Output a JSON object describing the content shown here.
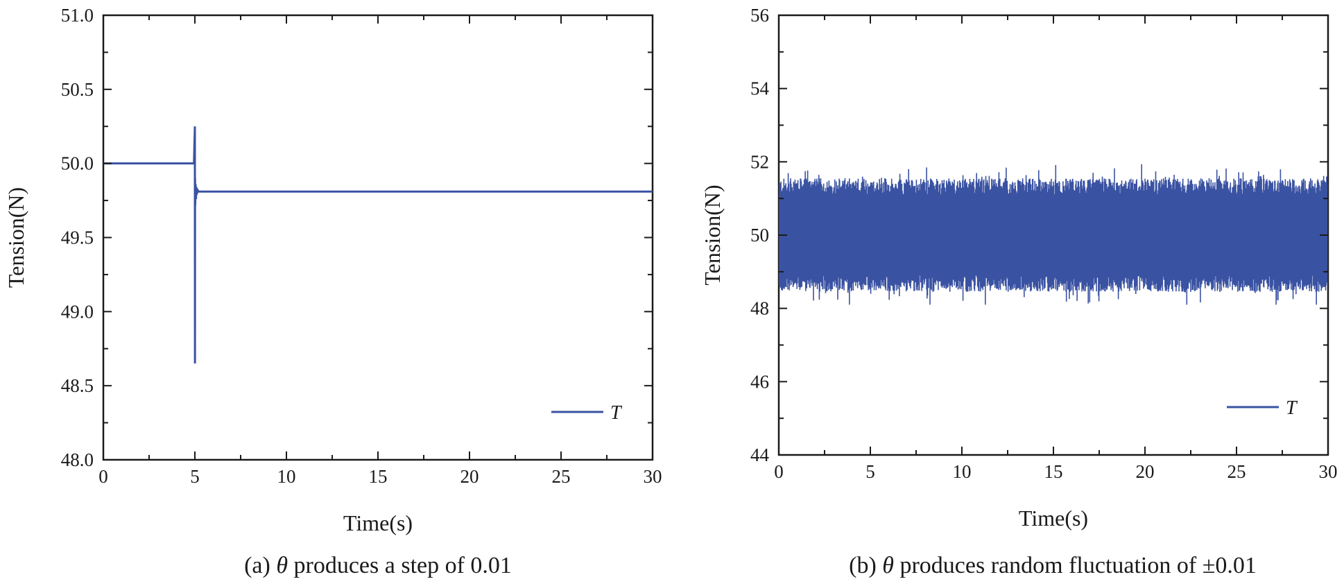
{
  "chart_data": [
    {
      "type": "line",
      "panel": "a",
      "caption_parts": [
        "(a) ",
        "θ",
        " produces a step of 0.01"
      ],
      "xlabel": "Time(s)",
      "ylabel": "Tension(N)",
      "xlim": [
        0,
        30
      ],
      "ylim": [
        48.0,
        51.0
      ],
      "xticks": [
        "0",
        "5",
        "10",
        "15",
        "20",
        "25",
        "30"
      ],
      "yticks": [
        "48.0",
        "48.5",
        "49.0",
        "49.5",
        "50.0",
        "50.5",
        "51.0"
      ],
      "grid": false,
      "legend": {
        "position": "bottom-right",
        "entries": [
          "T"
        ]
      },
      "series": [
        {
          "name": "T",
          "color": "#3a52a2",
          "x": [
            0,
            4.95,
            5.0,
            5.005,
            5.01,
            5.02,
            5.04,
            5.06,
            5.08,
            5.1,
            5.15,
            5.2,
            30
          ],
          "y": [
            50.0,
            50.0,
            50.25,
            48.65,
            49.9,
            49.72,
            49.86,
            49.76,
            49.84,
            49.79,
            49.82,
            49.81,
            49.81
          ]
        }
      ]
    },
    {
      "type": "line",
      "panel": "b",
      "caption_parts": [
        "(b) ",
        "θ",
        " produces random fluctuation of ±0.01"
      ],
      "xlabel": "Time(s)",
      "ylabel": "Tension(N)",
      "xlim": [
        0,
        30
      ],
      "ylim": [
        44,
        56
      ],
      "xticks": [
        "0",
        "5",
        "10",
        "15",
        "20",
        "25",
        "30"
      ],
      "yticks": [
        "44",
        "46",
        "48",
        "50",
        "52",
        "54",
        "56"
      ],
      "grid": false,
      "legend": {
        "position": "bottom-right",
        "entries": [
          "T"
        ]
      },
      "series": [
        {
          "name": "T",
          "color": "#3a52a2",
          "mean": 50,
          "fluctuation_range": [
            48.1,
            52.0
          ]
        }
      ]
    }
  ]
}
